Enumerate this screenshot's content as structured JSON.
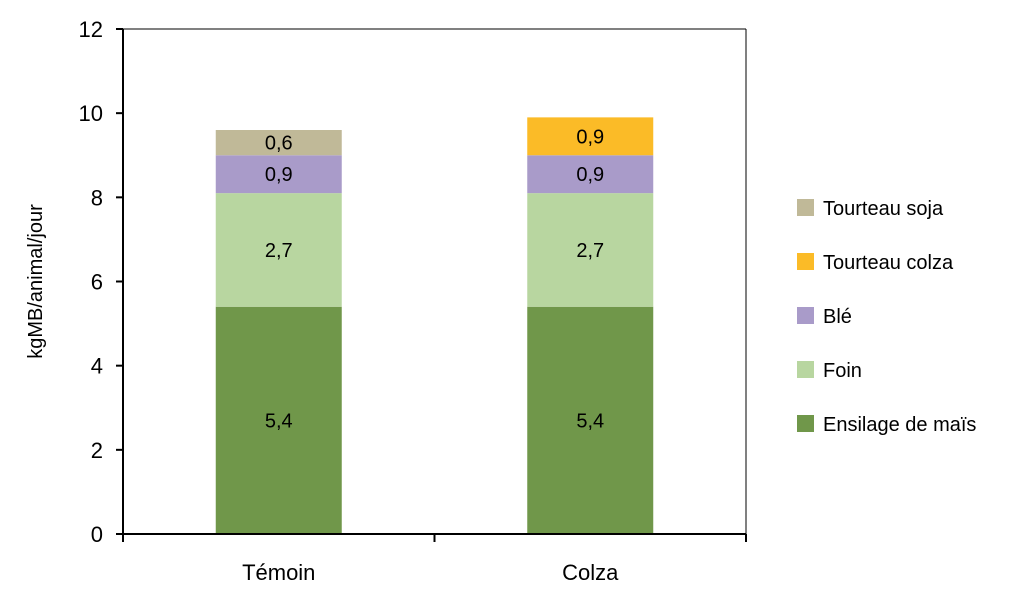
{
  "chart_data": {
    "type": "bar",
    "stacked": true,
    "categories": [
      "Témoin",
      "Colza"
    ],
    "series": [
      {
        "name": "Ensilage de maïs",
        "values": [
          5.4,
          5.4
        ],
        "labels": [
          "5,4",
          "5,4"
        ],
        "color": "#70974a"
      },
      {
        "name": "Foin",
        "values": [
          2.7,
          2.7
        ],
        "labels": [
          "2,7",
          "2,7"
        ],
        "color": "#b8d6a0"
      },
      {
        "name": "Blé",
        "values": [
          0.9,
          0.9
        ],
        "labels": [
          "0,9",
          "0,9"
        ],
        "color": "#a99bc9"
      },
      {
        "name": "Tourteau colza",
        "values": [
          0,
          0.9
        ],
        "labels": [
          "",
          "0,9"
        ],
        "color": "#fbbb27"
      },
      {
        "name": "Tourteau soja",
        "values": [
          0.6,
          0
        ],
        "labels": [
          "0,6",
          ""
        ],
        "color": "#c0b998"
      }
    ],
    "legend_order": [
      "Tourteau soja",
      "Tourteau colza",
      "Blé",
      "Foin",
      "Ensilage de maïs"
    ],
    "ylabel": "kgMB/animal/jour",
    "xlabel": "",
    "ylim": [
      0,
      12
    ],
    "yticks": [
      0,
      2,
      4,
      6,
      8,
      10,
      12
    ],
    "grid": false,
    "legend_position": "right"
  }
}
